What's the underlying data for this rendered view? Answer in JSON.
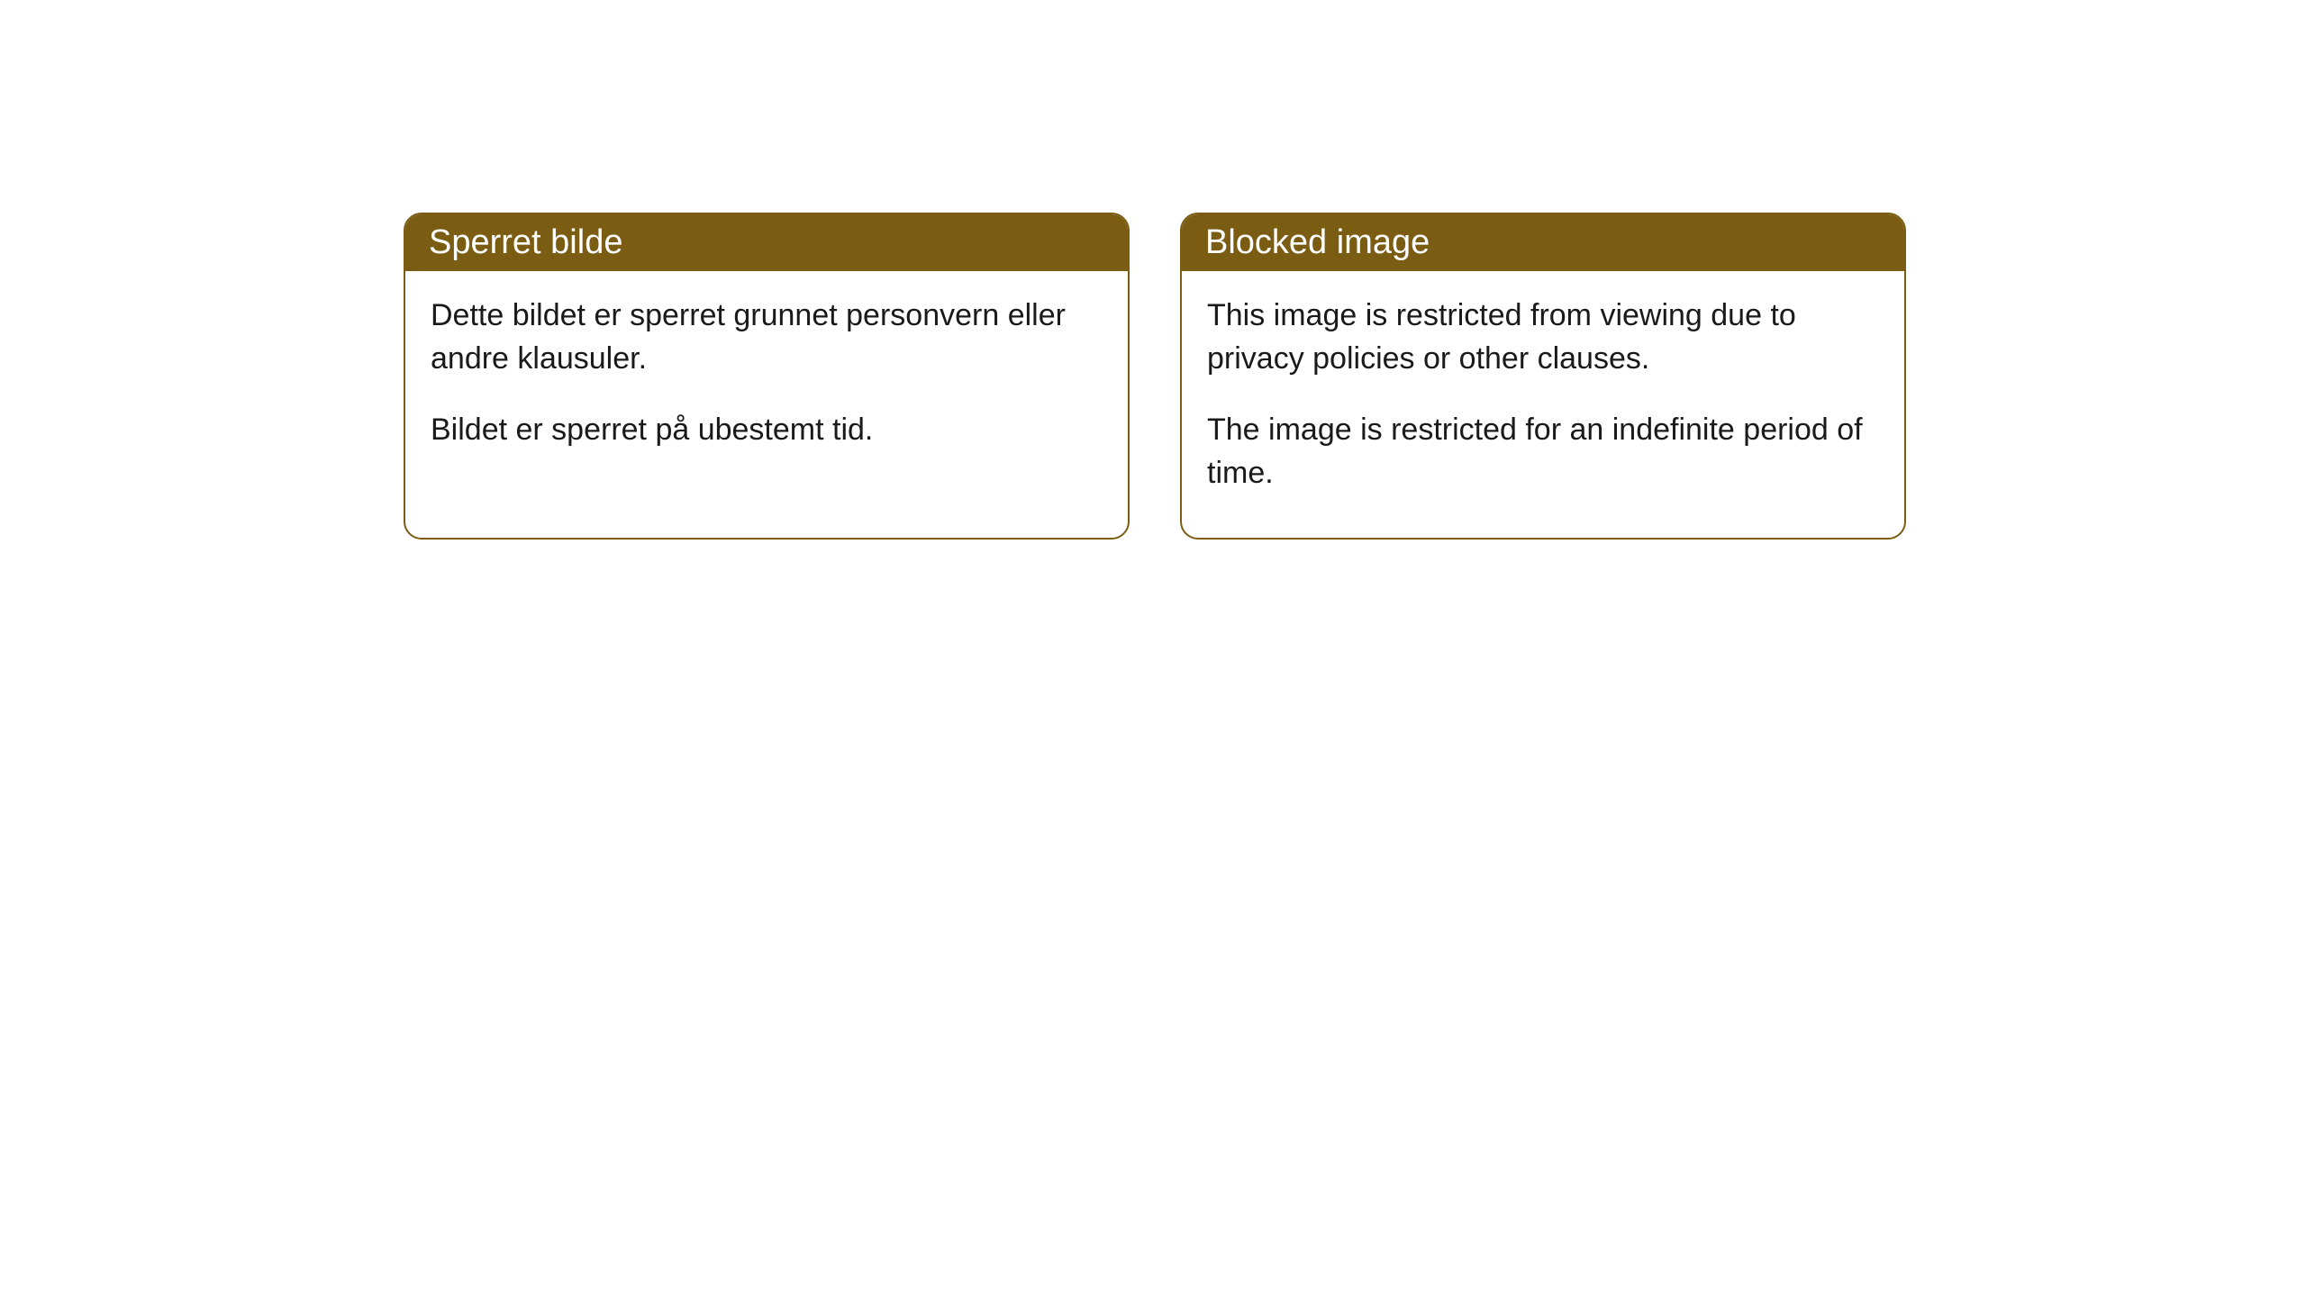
{
  "cards": [
    {
      "title": "Sperret bilde",
      "paragraph1": "Dette bildet er sperret grunnet personvern eller andre klausuler.",
      "paragraph2": "Bildet er sperret på ubestemt tid."
    },
    {
      "title": "Blocked image",
      "paragraph1": "This image is restricted from viewing due to privacy policies or other clauses.",
      "paragraph2": "The image is restricted for an indefinite period of time."
    }
  ],
  "styling": {
    "header_background_color": "#7a5c13",
    "header_text_color": "#ffffff",
    "card_border_color": "#7a5c13",
    "card_background_color": "#ffffff",
    "body_text_color": "#1a1a1a",
    "page_background_color": "#ffffff",
    "border_radius": 20,
    "title_fontsize": 38,
    "body_fontsize": 34
  }
}
